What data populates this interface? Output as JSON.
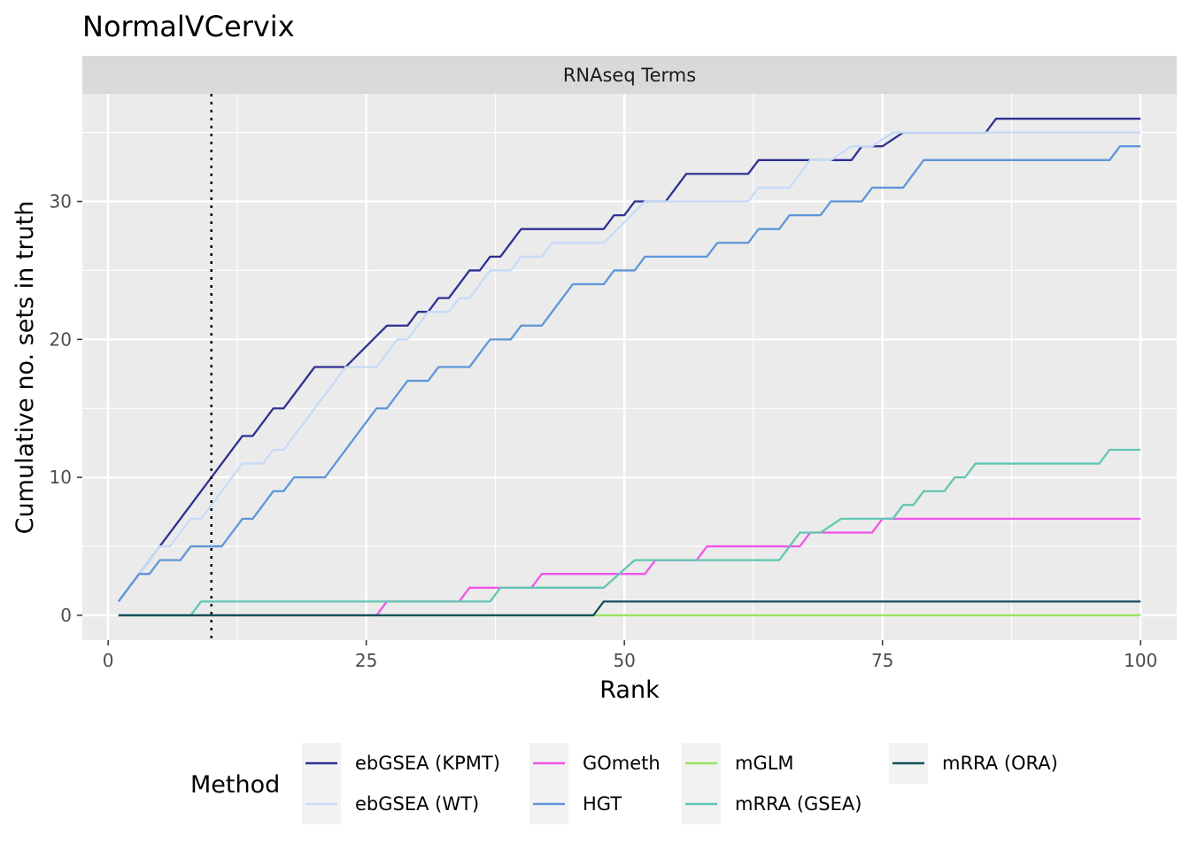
{
  "chart_data": {
    "type": "line",
    "title": "NormalVCervix",
    "facet_label": "RNAseq Terms",
    "xlabel": "Rank",
    "ylabel": "Cumulative no. sets in truth",
    "xlim": [
      -2.5,
      103.5
    ],
    "ylim": [
      -1.8,
      37.8
    ],
    "x_ticks": [
      0,
      25,
      50,
      75,
      100
    ],
    "y_ticks": [
      0,
      10,
      20,
      30
    ],
    "grid": true,
    "background": "#ebebeb",
    "reference_line": {
      "x": 10,
      "style": "dotted",
      "color": "#000000"
    },
    "legend": {
      "title": "Method",
      "position": "bottom"
    },
    "series": [
      {
        "name": "ebGSEA (KPMT)",
        "color": "#2e3192",
        "points": [
          [
            1,
            1
          ],
          [
            5,
            5
          ],
          [
            13,
            13
          ],
          [
            14,
            13
          ],
          [
            16,
            15
          ],
          [
            17,
            15
          ],
          [
            20,
            18
          ],
          [
            23,
            18
          ],
          [
            27,
            21
          ],
          [
            29,
            21
          ],
          [
            30,
            22
          ],
          [
            31,
            22
          ],
          [
            32,
            23
          ],
          [
            33,
            23
          ],
          [
            35,
            25
          ],
          [
            36,
            25
          ],
          [
            37,
            26
          ],
          [
            38,
            26
          ],
          [
            40,
            28
          ],
          [
            48,
            28
          ],
          [
            49,
            29
          ],
          [
            50,
            29
          ],
          [
            51,
            30
          ],
          [
            54,
            30
          ],
          [
            56,
            32
          ],
          [
            62,
            32
          ],
          [
            63,
            33
          ],
          [
            70,
            33
          ],
          [
            72,
            33
          ],
          [
            73,
            34
          ],
          [
            75,
            34
          ],
          [
            77,
            35
          ],
          [
            85,
            35
          ],
          [
            86,
            36
          ],
          [
            100,
            36
          ]
        ]
      },
      {
        "name": "ebGSEA (WT)",
        "color": "#c6dbf8",
        "points": [
          [
            1,
            1
          ],
          [
            5,
            5
          ],
          [
            6,
            5
          ],
          [
            8,
            7
          ],
          [
            9,
            7
          ],
          [
            13,
            11
          ],
          [
            15,
            11
          ],
          [
            16,
            12
          ],
          [
            17,
            12
          ],
          [
            23,
            18
          ],
          [
            26,
            18
          ],
          [
            28,
            20
          ],
          [
            29,
            20
          ],
          [
            31,
            22
          ],
          [
            33,
            22
          ],
          [
            34,
            23
          ],
          [
            35,
            23
          ],
          [
            37,
            25
          ],
          [
            39,
            25
          ],
          [
            40,
            26
          ],
          [
            42,
            26
          ],
          [
            43,
            27
          ],
          [
            48,
            27
          ],
          [
            52,
            30
          ],
          [
            62,
            30
          ],
          [
            63,
            31
          ],
          [
            66,
            31
          ],
          [
            68,
            33
          ],
          [
            70,
            33
          ],
          [
            72,
            34
          ],
          [
            74,
            34
          ],
          [
            76,
            35
          ],
          [
            100,
            35
          ]
        ]
      },
      {
        "name": "GOmeth",
        "color": "#f055e9",
        "points": [
          [
            1,
            0
          ],
          [
            26,
            0
          ],
          [
            27,
            1
          ],
          [
            34,
            1
          ],
          [
            35,
            2
          ],
          [
            38,
            2
          ],
          [
            39,
            2
          ],
          [
            41,
            2
          ],
          [
            42,
            3
          ],
          [
            50,
            3
          ],
          [
            52,
            3
          ],
          [
            53,
            4
          ],
          [
            57,
            4
          ],
          [
            58,
            5
          ],
          [
            66,
            5
          ],
          [
            67,
            5
          ],
          [
            68,
            6
          ],
          [
            73,
            6
          ],
          [
            74,
            6
          ],
          [
            75,
            7
          ],
          [
            100,
            7
          ]
        ]
      },
      {
        "name": "HGT",
        "color": "#5f96d8",
        "points": [
          [
            1,
            1
          ],
          [
            3,
            3
          ],
          [
            4,
            3
          ],
          [
            5,
            4
          ],
          [
            7,
            4
          ],
          [
            8,
            5
          ],
          [
            11,
            5
          ],
          [
            13,
            7
          ],
          [
            14,
            7
          ],
          [
            16,
            9
          ],
          [
            17,
            9
          ],
          [
            18,
            10
          ],
          [
            21,
            10
          ],
          [
            26,
            15
          ],
          [
            27,
            15
          ],
          [
            29,
            17
          ],
          [
            31,
            17
          ],
          [
            32,
            18
          ],
          [
            35,
            18
          ],
          [
            37,
            20
          ],
          [
            39,
            20
          ],
          [
            40,
            21
          ],
          [
            42,
            21
          ],
          [
            45,
            24
          ],
          [
            48,
            24
          ],
          [
            49,
            25
          ],
          [
            51,
            25
          ],
          [
            52,
            26
          ],
          [
            58,
            26
          ],
          [
            59,
            27
          ],
          [
            62,
            27
          ],
          [
            63,
            28
          ],
          [
            65,
            28
          ],
          [
            66,
            29
          ],
          [
            69,
            29
          ],
          [
            70,
            30
          ],
          [
            73,
            30
          ],
          [
            74,
            31
          ],
          [
            77,
            31
          ],
          [
            79,
            33
          ],
          [
            97,
            33
          ],
          [
            98,
            34
          ],
          [
            100,
            34
          ]
        ]
      },
      {
        "name": "mGLM",
        "color": "#99e365",
        "points": [
          [
            1,
            0
          ],
          [
            100,
            0
          ]
        ]
      },
      {
        "name": "mRRA (GSEA)",
        "color": "#62c6b2",
        "points": [
          [
            1,
            0
          ],
          [
            8,
            0
          ],
          [
            9,
            1
          ],
          [
            37,
            1
          ],
          [
            38,
            2
          ],
          [
            48,
            2
          ],
          [
            51,
            4
          ],
          [
            65,
            4
          ],
          [
            67,
            6
          ],
          [
            69,
            6
          ],
          [
            71,
            7
          ],
          [
            76,
            7
          ],
          [
            77,
            8
          ],
          [
            78,
            8
          ],
          [
            79,
            9
          ],
          [
            81,
            9
          ],
          [
            82,
            10
          ],
          [
            83,
            10
          ],
          [
            84,
            11
          ],
          [
            96,
            11
          ],
          [
            97,
            12
          ],
          [
            100,
            12
          ]
        ]
      },
      {
        "name": "mRRA (ORA)",
        "color": "#15515a",
        "points": [
          [
            1,
            0
          ],
          [
            47,
            0
          ],
          [
            48,
            1
          ],
          [
            100,
            1
          ]
        ]
      }
    ]
  }
}
